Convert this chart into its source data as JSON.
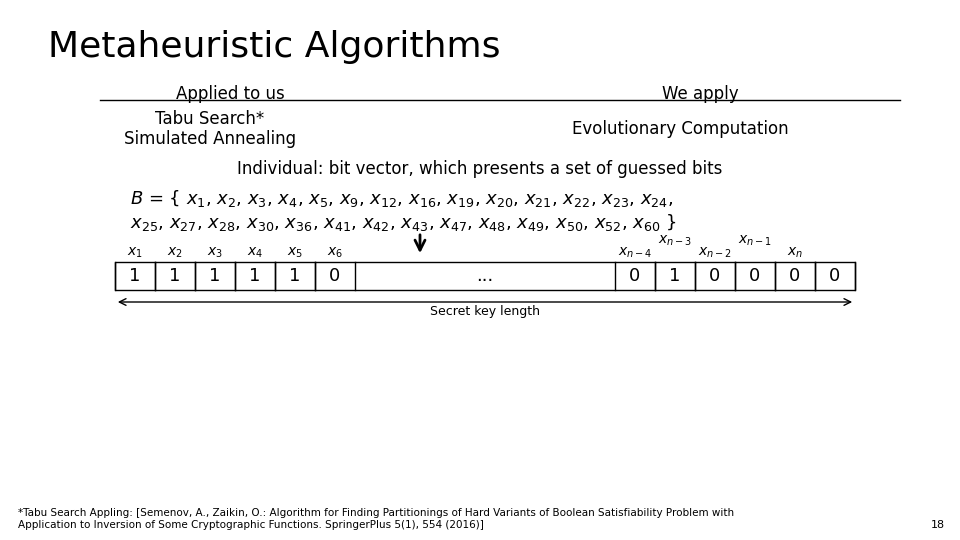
{
  "title": "Metaheuristic Algorithms",
  "col1_header": "Applied to us",
  "col2_header": "We apply",
  "col1_item1": "Tabu Search*",
  "col1_item2": "Simulated Annealing",
  "col2_item1": "Evolutionary Computation",
  "individual_text": "Individual: bit vector, which presents a set of guessed bits",
  "cells_left": [
    "1",
    "1",
    "1",
    "1",
    "1",
    "0"
  ],
  "cells_right": [
    "0",
    "1",
    "0",
    "0",
    "0",
    "0"
  ],
  "cells_middle": "...",
  "secret_key_label": "Secret key length",
  "footnote1": "*Tabu Search Appling: [Semenov, A., Zaikin, O.: Algorithm for Finding Partitionings of Hard Variants of Boolean Satisfiability Problem with",
  "footnote2": "Application to Inversion of Some Cryptographic Functions. SpringerPlus 5(1), 554 (2016)]",
  "page_number": "18",
  "bg_color": "#ffffff",
  "text_color": "#000000"
}
